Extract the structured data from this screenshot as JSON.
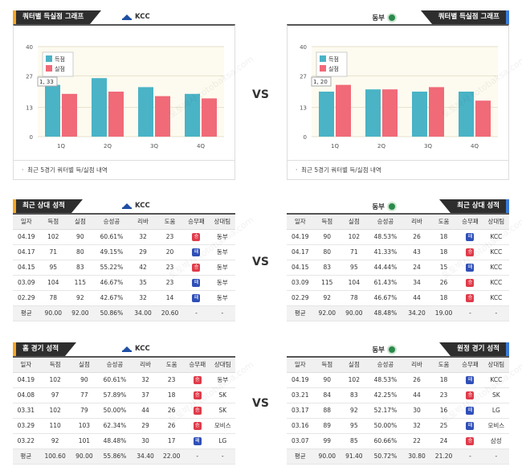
{
  "vs_label": "VS",
  "teams": {
    "home": "KCC",
    "away": "동부"
  },
  "quarter_panels": {
    "left_title": "쿼터별 득실점 그래프",
    "right_title": "쿼터별 득실점 그래프",
    "note": "최근 5경기 쿼터별 득/실점 내역"
  },
  "chart_data": [
    {
      "type": "bar",
      "categories": [
        "1Q",
        "2Q",
        "3Q",
        "4Q"
      ],
      "series": [
        {
          "name": "득점",
          "values": [
            23,
            26,
            22,
            19
          ]
        },
        {
          "name": "실점",
          "values": [
            19,
            20,
            18,
            17
          ]
        }
      ],
      "yticks": [
        "0",
        "13",
        "27",
        "40"
      ],
      "ylim": [
        0,
        40
      ],
      "tooltip": "1, 33",
      "colors": {
        "득점": "#4ab3c6",
        "실점": "#f06a78"
      }
    },
    {
      "type": "bar",
      "categories": [
        "1Q",
        "2Q",
        "3Q",
        "4Q"
      ],
      "series": [
        {
          "name": "득점",
          "values": [
            20,
            21,
            20,
            20
          ]
        },
        {
          "name": "실점",
          "values": [
            23,
            21,
            22,
            16
          ]
        }
      ],
      "yticks": [
        "0",
        "13",
        "27",
        "40"
      ],
      "ylim": [
        0,
        40
      ],
      "tooltip": "1, 20",
      "colors": {
        "득점": "#4ab3c6",
        "실점": "#f06a78"
      }
    }
  ],
  "columns": [
    "일자",
    "득점",
    "실점",
    "승성공",
    "리바",
    "도움",
    "승무패",
    "상대팀"
  ],
  "recent": {
    "left_title": "최근 상대 성적",
    "right_title": "최근 상대 성적",
    "left_rows": [
      [
        "04.19",
        "102",
        "90",
        "60.61%",
        "32",
        "23",
        "승",
        "동부"
      ],
      [
        "04.17",
        "71",
        "80",
        "49.15%",
        "29",
        "20",
        "패",
        "동부"
      ],
      [
        "04.15",
        "95",
        "83",
        "55.22%",
        "42",
        "23",
        "승",
        "동부"
      ],
      [
        "03.09",
        "104",
        "115",
        "46.67%",
        "35",
        "23",
        "패",
        "동부"
      ],
      [
        "02.29",
        "78",
        "92",
        "42.67%",
        "32",
        "14",
        "패",
        "동부"
      ]
    ],
    "left_avg": [
      "평균",
      "90.00",
      "92.00",
      "50.86%",
      "34.00",
      "20.60",
      "-",
      "-"
    ],
    "right_rows": [
      [
        "04.19",
        "90",
        "102",
        "48.53%",
        "26",
        "18",
        "패",
        "KCC"
      ],
      [
        "04.17",
        "80",
        "71",
        "41.33%",
        "43",
        "18",
        "승",
        "KCC"
      ],
      [
        "04.15",
        "83",
        "95",
        "44.44%",
        "24",
        "15",
        "패",
        "KCC"
      ],
      [
        "03.09",
        "115",
        "104",
        "61.43%",
        "34",
        "26",
        "승",
        "KCC"
      ],
      [
        "02.29",
        "92",
        "78",
        "46.67%",
        "44",
        "18",
        "승",
        "KCC"
      ]
    ],
    "right_avg": [
      "평균",
      "92.00",
      "90.00",
      "48.48%",
      "34.20",
      "19.00",
      "-",
      "-"
    ]
  },
  "games": {
    "left_title": "홈 경기 성적",
    "right_title": "원정 경기 성적",
    "left_rows": [
      [
        "04.19",
        "102",
        "90",
        "60.61%",
        "32",
        "23",
        "승",
        "동부"
      ],
      [
        "04.08",
        "97",
        "77",
        "57.89%",
        "37",
        "18",
        "승",
        "SK"
      ],
      [
        "03.31",
        "102",
        "79",
        "50.00%",
        "44",
        "26",
        "승",
        "SK"
      ],
      [
        "03.29",
        "110",
        "103",
        "62.34%",
        "29",
        "26",
        "승",
        "모비스"
      ],
      [
        "03.22",
        "92",
        "101",
        "48.48%",
        "30",
        "17",
        "패",
        "LG"
      ]
    ],
    "left_avg": [
      "평균",
      "100.60",
      "90.00",
      "55.86%",
      "34.40",
      "22.00",
      "-",
      "-"
    ],
    "right_rows": [
      [
        "04.19",
        "90",
        "102",
        "48.53%",
        "26",
        "18",
        "패",
        "KCC"
      ],
      [
        "03.21",
        "84",
        "83",
        "42.25%",
        "44",
        "23",
        "승",
        "SK"
      ],
      [
        "03.17",
        "88",
        "92",
        "52.17%",
        "30",
        "16",
        "패",
        "LG"
      ],
      [
        "03.16",
        "89",
        "95",
        "50.00%",
        "32",
        "25",
        "패",
        "모비스"
      ],
      [
        "03.07",
        "99",
        "85",
        "60.66%",
        "22",
        "24",
        "승",
        "삼성"
      ]
    ],
    "right_avg": [
      "평균",
      "90.00",
      "91.40",
      "50.72%",
      "30.80",
      "21.20",
      "-",
      "-"
    ]
  },
  "watermark": "토토박사 totobaksa.com"
}
